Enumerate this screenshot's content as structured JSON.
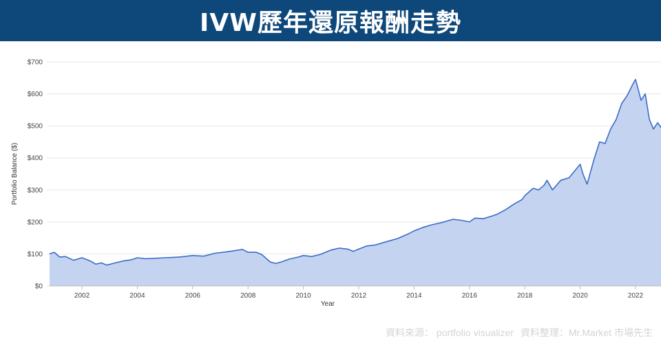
{
  "header": {
    "title": "IVW歷年還原報酬走勢"
  },
  "credit": {
    "source": "資料來源： portfolio visualizer",
    "compiler": "資料整理：Mr.Market 市場先生"
  },
  "colors": {
    "header_bg": "#0e477a",
    "line": "#3a6cc6",
    "area": "#c4d3f0",
    "grid": "#e6e6e6"
  },
  "chart_data": {
    "type": "area",
    "title": "",
    "xlabel": "Year",
    "ylabel": "Portfolio Balance ($)",
    "xlim": [
      2000.83,
      2022.92
    ],
    "ylim": [
      0,
      700
    ],
    "x_ticks": [
      "2002",
      "2004",
      "2006",
      "2008",
      "2010",
      "2012",
      "2014",
      "2016",
      "2018",
      "2020",
      "2022"
    ],
    "y_ticks": [
      "$0",
      "$100",
      "$200",
      "$300",
      "$400",
      "$500",
      "$600",
      "$700"
    ],
    "grid": true,
    "legend": "none",
    "series": [
      {
        "x": [
          2000.83,
          2001.0,
          2001.2,
          2001.4,
          2001.7,
          2002.0,
          2002.3,
          2002.5,
          2002.7,
          2002.9,
          2003.2,
          2003.5,
          2003.8,
          2004.0,
          2004.3,
          2004.6,
          2005.0,
          2005.5,
          2006.0,
          2006.4,
          2006.8,
          2007.2,
          2007.5,
          2007.8,
          2008.0,
          2008.3,
          2008.5,
          2008.8,
          2009.0,
          2009.2,
          2009.5,
          2009.8,
          2010.0,
          2010.3,
          2010.6,
          2011.0,
          2011.3,
          2011.6,
          2011.8,
          2012.0,
          2012.3,
          2012.6,
          2013.0,
          2013.4,
          2013.8,
          2014.0,
          2014.3,
          2014.6,
          2015.0,
          2015.4,
          2015.7,
          2016.0,
          2016.2,
          2016.5,
          2016.8,
          2017.0,
          2017.3,
          2017.6,
          2017.9,
          2018.0,
          2018.3,
          2018.5,
          2018.7,
          2018.8,
          2019.0,
          2019.3,
          2019.6,
          2020.0,
          2020.1,
          2020.25,
          2020.5,
          2020.7,
          2020.9,
          2021.1,
          2021.3,
          2021.5,
          2021.7,
          2021.9,
          2022.0,
          2022.2,
          2022.35,
          2022.5,
          2022.65,
          2022.8,
          2022.92
        ],
        "y": [
          100,
          105,
          90,
          92,
          80,
          88,
          78,
          68,
          72,
          65,
          72,
          78,
          82,
          88,
          85,
          86,
          88,
          90,
          95,
          93,
          102,
          106,
          110,
          114,
          105,
          105,
          98,
          75,
          70,
          75,
          84,
          90,
          95,
          92,
          98,
          112,
          118,
          115,
          108,
          115,
          125,
          128,
          138,
          148,
          163,
          172,
          182,
          190,
          198,
          208,
          205,
          200,
          212,
          210,
          218,
          224,
          238,
          255,
          270,
          282,
          305,
          300,
          315,
          330,
          300,
          330,
          338,
          380,
          350,
          318,
          395,
          450,
          445,
          490,
          520,
          570,
          595,
          630,
          645,
          580,
          600,
          520,
          490,
          510,
          495
        ]
      }
    ]
  }
}
